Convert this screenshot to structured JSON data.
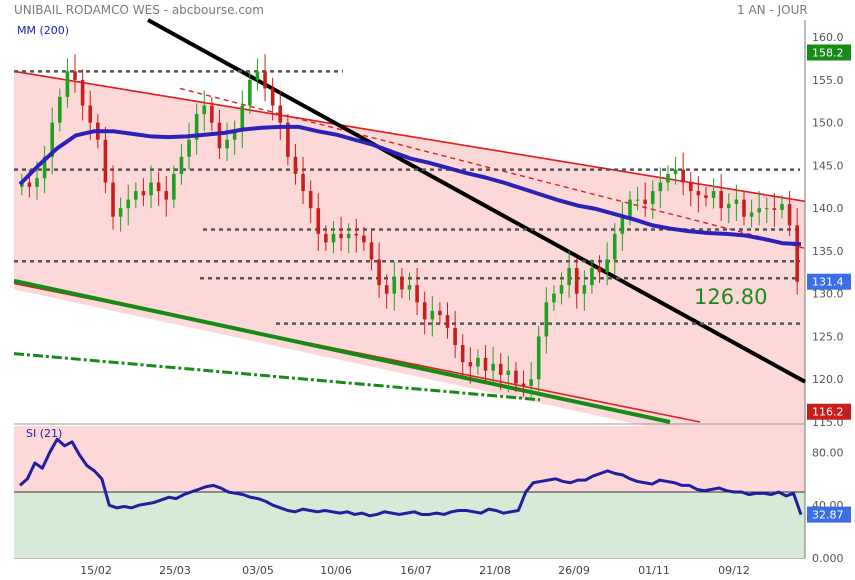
{
  "header": {
    "title": "UNIBAIL RODAMCO WES - abcbourse.com",
    "period": "1 AN - JOUR"
  },
  "colors": {
    "channel_fill": "#fcd8d8",
    "candle_up": "#1fa21f",
    "candle_down": "#c81e1e",
    "ma_line": "#2c22b8",
    "trend_black": "#000000",
    "channel_red": "#e21f1f",
    "support_green": "#178a17",
    "rsi_line": "#1f1fa0",
    "rsi_top_fill": "#fcd8d8",
    "rsi_bottom_fill": "#d7ead7",
    "last_badge": "#3b6ee6",
    "high_badge": "#178a17",
    "low_badge": "#c81e1e"
  },
  "chart_data": [
    {
      "type": "candlestick",
      "indicator_label": "MM (200)",
      "ylim": [
        115,
        162
      ],
      "yticks": [
        "115.0",
        "120.0",
        "125.0",
        "130.0",
        "135.0",
        "140.0",
        "145.0",
        "150.0",
        "155.0",
        "160.0"
      ],
      "x_labels": [
        "15/02",
        "25/03",
        "03/05",
        "10/06",
        "16/07",
        "21/08",
        "26/09",
        "01/11",
        "09/12"
      ],
      "badges": {
        "high": "158.2",
        "last": "131.4",
        "low": "116.2"
      },
      "annotation": "126.80",
      "close_series": [
        143,
        142.5,
        143.5,
        146,
        150,
        153,
        156,
        155,
        152,
        150,
        148,
        143,
        139,
        140,
        141,
        142,
        141.5,
        143,
        142,
        141,
        144,
        146,
        148,
        151,
        152,
        150,
        147,
        148,
        149,
        152,
        155,
        156,
        154,
        152,
        150,
        146,
        144,
        142,
        140,
        137,
        136,
        137,
        136.5,
        137,
        136.8,
        136,
        134,
        131,
        130,
        132,
        130.5,
        131,
        129,
        127,
        128,
        127.5,
        126,
        124,
        122,
        121.5,
        122.5,
        121,
        121.8,
        120.5,
        121,
        119.5,
        119.2,
        120,
        125,
        129,
        130,
        131,
        133,
        130,
        131,
        133,
        132.5,
        134,
        137,
        139,
        141,
        141,
        140.5,
        142,
        143,
        144,
        144.5,
        143,
        142,
        141.5,
        141.2,
        142,
        140,
        140.5,
        141,
        139,
        139.5,
        140,
        140,
        139.8,
        140.5,
        138,
        131.4
      ],
      "ma200_series": [
        142.8,
        145,
        147,
        148.5,
        149,
        149,
        148.7,
        148.4,
        148.3,
        148.4,
        148.6,
        148.8,
        149.2,
        149.4,
        149.5,
        149.5,
        149,
        148.6,
        148,
        147.4,
        146.6,
        145.8,
        145.3,
        144.7,
        144.1,
        143.6,
        143,
        142.3,
        141.6,
        140.9,
        140.3,
        139.9,
        139.3,
        138.7,
        138,
        137.6,
        137.3,
        137.1,
        137,
        136.8,
        136.4,
        135.9,
        135.8
      ],
      "resistance_levels": [
        156,
        144.5,
        137.5,
        133.8,
        131.8,
        126.5
      ],
      "rsi": {
        "label": "SI (21)",
        "ylim": [
          0,
          100
        ],
        "yticks": [
          "0.000",
          "40.00",
          "80.00"
        ],
        "last_value": "32.87",
        "series": [
          55,
          60,
          72,
          68,
          80,
          90,
          85,
          88,
          78,
          70,
          66,
          60,
          40,
          38,
          39,
          38,
          40,
          41,
          42,
          44,
          46,
          45,
          48,
          50,
          52,
          54,
          55,
          53,
          50,
          49,
          48,
          46,
          45,
          43,
          40,
          38,
          36,
          35,
          37,
          36,
          35,
          36,
          35,
          34,
          35,
          33,
          34,
          32,
          33,
          35,
          34,
          33,
          34,
          35,
          33,
          33,
          34,
          33,
          35,
          36,
          36,
          35,
          34,
          37,
          36,
          34,
          35,
          36,
          50,
          57,
          58,
          59,
          60,
          58,
          57,
          59,
          59,
          62,
          64,
          66,
          64,
          63,
          60,
          58,
          57,
          56,
          59,
          58,
          57,
          55,
          55,
          52,
          51,
          52,
          53,
          51,
          50,
          50,
          48,
          49,
          49,
          48,
          50,
          47,
          49,
          32.87
        ]
      }
    }
  ]
}
